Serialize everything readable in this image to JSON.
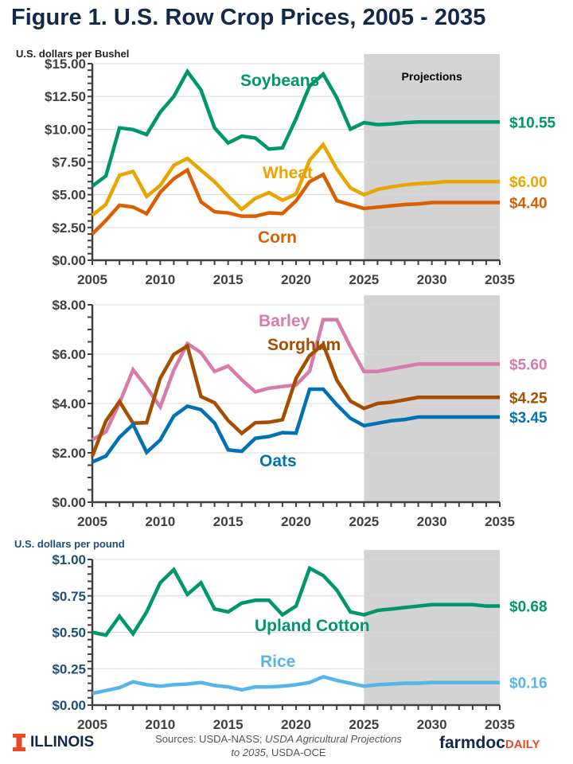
{
  "title": "Figure 1. U.S. Row Crop Prices, 2005 - 2035",
  "footer": {
    "sources_prefix": "Sources: USDA-NASS; ",
    "sources_italic": "USDA Agricultural Projections to 2035",
    "sources_suffix": ", USDA-OCE",
    "logo_left": "ILLINOIS",
    "logo_right_a": "farmdoc",
    "logo_right_b": "DAILY"
  },
  "chart_data": [
    {
      "type": "line",
      "ylabel": "U.S. dollars per Bushel",
      "xlim": [
        2005,
        2035
      ],
      "ylim": [
        0,
        15
      ],
      "yticks": [
        0,
        2.5,
        5,
        7.5,
        10,
        12.5,
        15
      ],
      "ytick_labels": [
        "$0.00",
        "$2.50",
        "$5.00",
        "$7.50",
        "$10.00",
        "$12.50",
        "$15.00"
      ],
      "xticks": [
        2005,
        2010,
        2015,
        2020,
        2025,
        2030,
        2035
      ],
      "grid": true,
      "shaded_region": {
        "from": 2025,
        "to": 2035,
        "label": "Projections"
      },
      "series": [
        {
          "name": "Soybeans",
          "color": "#00966c",
          "end_label": "$10.55",
          "values": [
            5.66,
            6.43,
            10.1,
            9.97,
            9.59,
            11.3,
            12.5,
            14.4,
            13.0,
            10.1,
            8.95,
            9.47,
            9.33,
            8.48,
            8.57,
            10.8,
            13.3,
            14.2,
            12.4,
            10.0,
            10.5,
            10.35,
            10.4,
            10.5,
            10.55,
            10.55,
            10.55,
            10.55,
            10.55,
            10.55,
            10.55
          ]
        },
        {
          "name": "Wheat",
          "color": "#e9a400",
          "end_label": "$6.00",
          "values": [
            3.42,
            4.26,
            6.48,
            6.78,
            4.87,
            5.7,
            7.24,
            7.77,
            6.87,
            5.99,
            4.89,
            3.89,
            4.72,
            5.16,
            4.58,
            5.05,
            7.63,
            8.83,
            6.96,
            5.52,
            5.0,
            5.4,
            5.6,
            5.75,
            5.85,
            5.9,
            6.0,
            6.0,
            6.0,
            6.0,
            6.0
          ]
        },
        {
          "name": "Corn",
          "color": "#d95f02",
          "end_label": "$4.40",
          "values": [
            2.0,
            3.04,
            4.2,
            4.06,
            3.55,
            5.18,
            6.22,
            6.89,
            4.46,
            3.7,
            3.61,
            3.36,
            3.36,
            3.61,
            3.56,
            4.53,
            6.0,
            6.54,
            4.55,
            4.24,
            3.95,
            4.05,
            4.15,
            4.25,
            4.3,
            4.4,
            4.4,
            4.4,
            4.4,
            4.4,
            4.4
          ]
        }
      ]
    },
    {
      "type": "line",
      "ylabel": "",
      "xlim": [
        2005,
        2035
      ],
      "ylim": [
        0,
        8
      ],
      "yticks": [
        0,
        2,
        4,
        6,
        8
      ],
      "ytick_labels": [
        "$0.00",
        "$2.00",
        "$4.00",
        "$6.00",
        "$8.00"
      ],
      "xticks": [
        2005,
        2010,
        2015,
        2020,
        2025,
        2030,
        2035
      ],
      "grid": true,
      "shaded_region": {
        "from": 2025,
        "to": 2035,
        "label": ""
      },
      "series": [
        {
          "name": "Barley",
          "color": "#d67bab",
          "end_label": "$5.60",
          "values": [
            2.53,
            2.85,
            4.02,
            5.37,
            4.66,
            3.86,
            5.35,
            6.43,
            6.06,
            5.3,
            5.52,
            4.96,
            4.47,
            4.62,
            4.69,
            4.75,
            5.31,
            7.4,
            7.4,
            6.3,
            5.3,
            5.3,
            5.4,
            5.5,
            5.6,
            5.6,
            5.6,
            5.6,
            5.6,
            5.6,
            5.6
          ]
        },
        {
          "name": "Sorghum",
          "color": "#a64d00",
          "end_label": "$4.25",
          "values": [
            1.86,
            3.29,
            4.08,
            3.2,
            3.22,
            5.02,
            5.99,
            6.33,
            4.28,
            4.03,
            3.31,
            2.79,
            3.22,
            3.24,
            3.34,
            5.02,
            5.94,
            6.4,
            4.95,
            4.1,
            3.8,
            4.0,
            4.05,
            4.15,
            4.25,
            4.25,
            4.25,
            4.25,
            4.25,
            4.25,
            4.25
          ]
        },
        {
          "name": "Oats",
          "color": "#0072b2",
          "end_label": "$3.45",
          "values": [
            1.63,
            1.87,
            2.63,
            3.15,
            2.02,
            2.52,
            3.49,
            3.89,
            3.75,
            3.21,
            2.12,
            2.06,
            2.59,
            2.66,
            2.82,
            2.8,
            4.58,
            4.58,
            3.95,
            3.4,
            3.1,
            3.2,
            3.3,
            3.35,
            3.45,
            3.45,
            3.45,
            3.45,
            3.45,
            3.45,
            3.45
          ]
        }
      ]
    },
    {
      "type": "line",
      "ylabel": "U.S. dollars per pound",
      "xlim": [
        2005,
        2035
      ],
      "ylim": [
        0,
        1
      ],
      "yticks": [
        0,
        0.25,
        0.5,
        0.75,
        1
      ],
      "ytick_labels": [
        "$0.00",
        "$0.25",
        "$0.50",
        "$0.75",
        "$1.00"
      ],
      "xticks": [
        2005,
        2010,
        2015,
        2020,
        2025,
        2030,
        2035
      ],
      "grid": true,
      "shaded_region": {
        "from": 2025,
        "to": 2035,
        "label": ""
      },
      "series": [
        {
          "name": "Upland Cotton",
          "color": "#00966c",
          "end_label": "$0.68",
          "values": [
            0.5,
            0.48,
            0.61,
            0.49,
            0.64,
            0.84,
            0.93,
            0.76,
            0.84,
            0.66,
            0.64,
            0.7,
            0.72,
            0.72,
            0.62,
            0.68,
            0.94,
            0.89,
            0.79,
            0.64,
            0.62,
            0.65,
            0.66,
            0.67,
            0.68,
            0.69,
            0.69,
            0.69,
            0.69,
            0.68,
            0.68
          ]
        },
        {
          "name": "Rice",
          "color": "#56b4e9",
          "end_label": "$0.16",
          "values": [
            0.08,
            0.1,
            0.12,
            0.16,
            0.14,
            0.13,
            0.14,
            0.145,
            0.155,
            0.135,
            0.125,
            0.105,
            0.125,
            0.125,
            0.13,
            0.14,
            0.155,
            0.195,
            0.17,
            0.15,
            0.13,
            0.14,
            0.145,
            0.15,
            0.15,
            0.155,
            0.155,
            0.155,
            0.155,
            0.155,
            0.155
          ]
        }
      ]
    }
  ]
}
